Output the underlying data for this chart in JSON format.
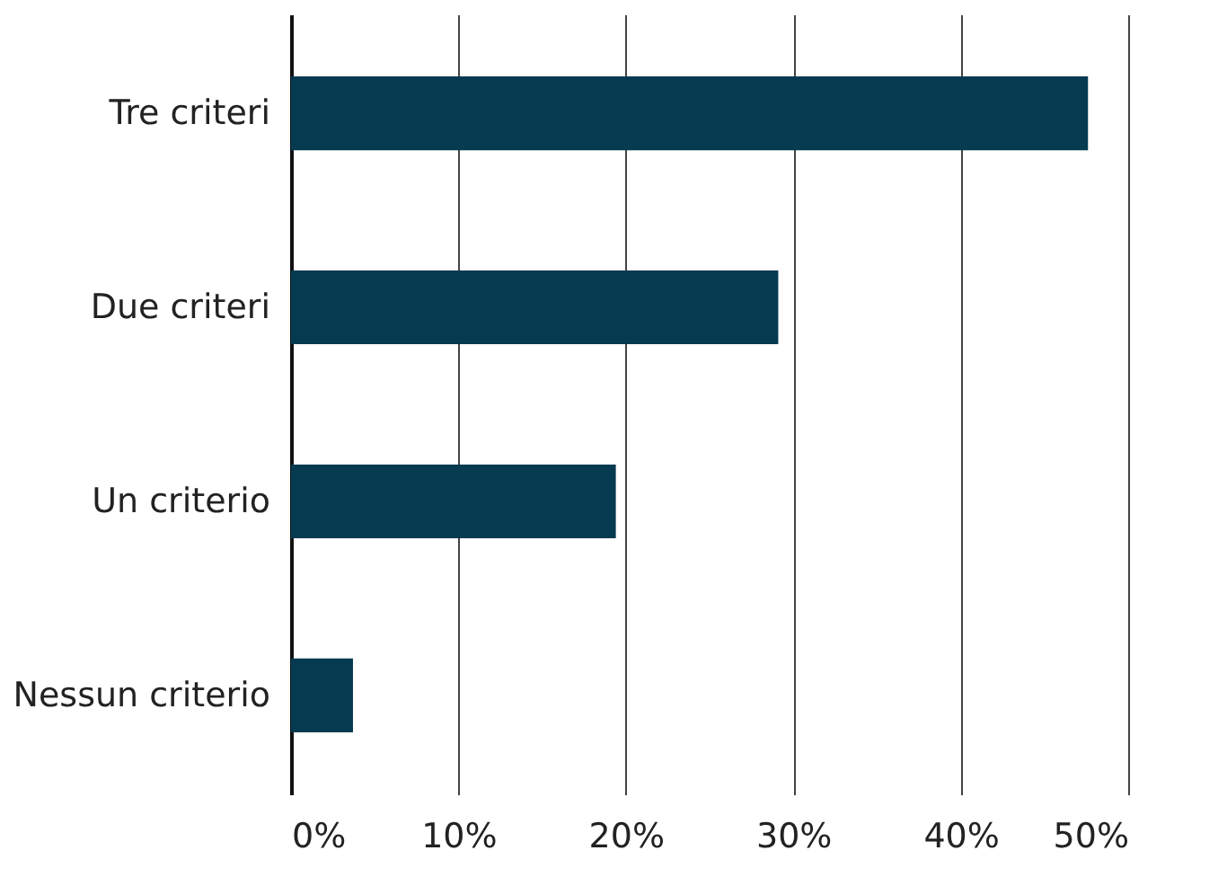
{
  "chart_data": {
    "type": "bar",
    "orientation": "horizontal",
    "categories": [
      "Tre criteri",
      "Due criteri",
      "Un criterio",
      "Nessun criterio"
    ],
    "values": [
      47.6,
      29.1,
      19.4,
      3.7
    ],
    "color": "#053a50",
    "xlim": [
      0,
      50
    ],
    "xticks": [
      {
        "value": 0,
        "label": "0%"
      },
      {
        "value": 10,
        "label": "10%"
      },
      {
        "value": 20,
        "label": "20%"
      },
      {
        "value": 30,
        "label": "30%"
      },
      {
        "value": 40,
        "label": "40%"
      },
      {
        "value": 50,
        "label": "50%"
      }
    ],
    "grid": "x"
  }
}
